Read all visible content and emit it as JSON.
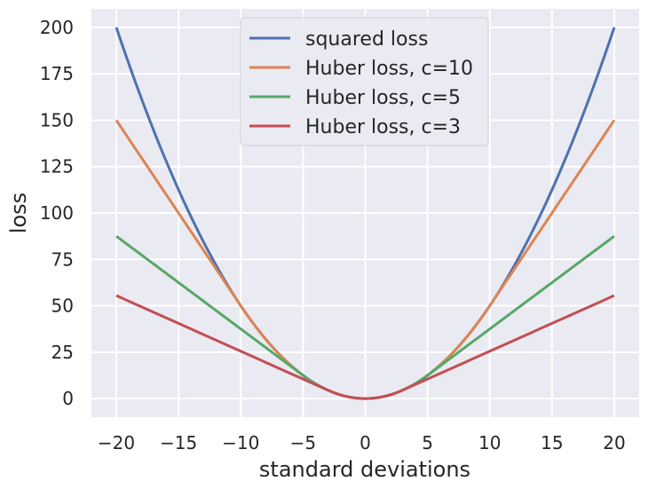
{
  "chart_data": {
    "type": "line",
    "title": "",
    "xlabel": "standard deviations",
    "ylabel": "loss",
    "xlim": [
      -22,
      22
    ],
    "ylim": [
      -10,
      210
    ],
    "xticks": [
      -20,
      -15,
      -10,
      -5,
      0,
      5,
      10,
      15,
      20
    ],
    "yticks": [
      0,
      25,
      50,
      75,
      100,
      125,
      150,
      175,
      200
    ],
    "xtick_labels": [
      "−20",
      "−15",
      "−10",
      "−5",
      "0",
      "5",
      "10",
      "15",
      "20"
    ],
    "ytick_labels": [
      "0",
      "25",
      "50",
      "75",
      "100",
      "125",
      "150",
      "175",
      "200"
    ],
    "grid": true,
    "legend_position": "top-center",
    "x_range": [
      -20,
      20
    ],
    "series": [
      {
        "name": "squared loss",
        "kind": "squared",
        "color": "#4c72b0"
      },
      {
        "name": "Huber loss, c=10",
        "kind": "huber",
        "c": 10,
        "color": "#dd8452"
      },
      {
        "name": "Huber loss, c=5",
        "kind": "huber",
        "c": 5,
        "color": "#55a868"
      },
      {
        "name": "Huber loss, c=3",
        "kind": "huber",
        "c": 3,
        "color": "#c44e52"
      }
    ],
    "sample_values": {
      "x": [
        -20,
        -10,
        0,
        10,
        20
      ],
      "squared loss": [
        200,
        50,
        0,
        50,
        200
      ],
      "Huber loss, c=10": [
        150,
        50,
        0,
        50,
        150
      ],
      "Huber loss, c=5": [
        87.5,
        37.5,
        0,
        37.5,
        87.5
      ],
      "Huber loss, c=3": [
        55.5,
        25.5,
        0,
        25.5,
        55.5
      ]
    }
  },
  "colors": {
    "plot_background": "#eaeaf2",
    "grid": "#ffffff",
    "text": "#262626"
  }
}
